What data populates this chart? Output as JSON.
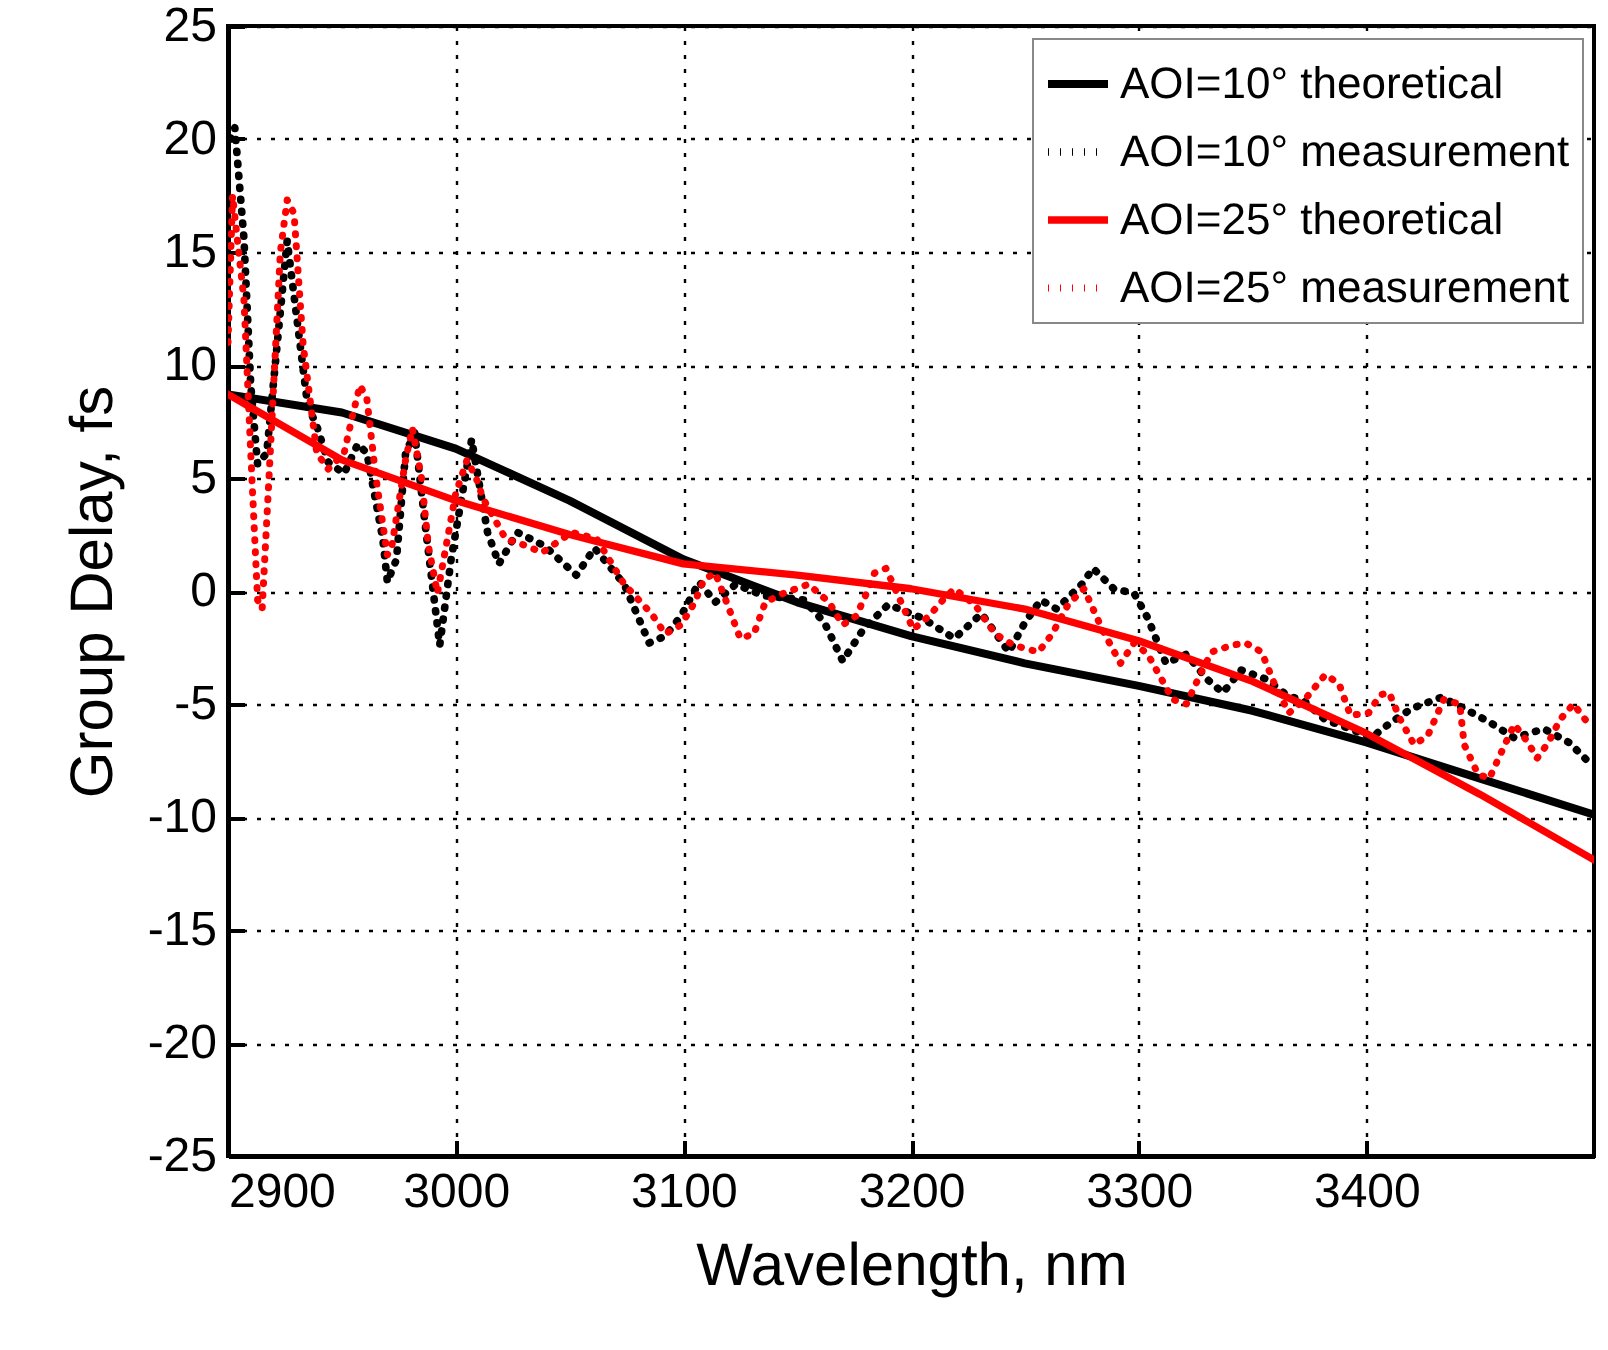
{
  "chart_data": {
    "type": "line",
    "xlabel": "Wavelength, nm",
    "ylabel": "Group Delay, fs",
    "xlim": [
      2900,
      3500
    ],
    "xticks": [
      2900,
      3000,
      3100,
      3200,
      3300,
      3400
    ],
    "ylim": [
      -25,
      25
    ],
    "yticks": [
      -25,
      -20,
      -15,
      -10,
      -5,
      0,
      5,
      10,
      15,
      20,
      25
    ],
    "grid": true,
    "legend": "top right",
    "series": [
      {
        "name": "AOI=10° theoretical",
        "color": "#000000",
        "line_style": "solid",
        "x": [
          2900,
          2950,
          3000,
          3050,
          3100,
          3150,
          3200,
          3250,
          3300,
          3350,
          3400,
          3450,
          3500
        ],
        "values": [
          8.7,
          7.9,
          6.3,
          4.0,
          1.4,
          -0.5,
          -2.0,
          -3.2,
          -4.2,
          -5.3,
          -6.7,
          -8.3,
          -9.9
        ]
      },
      {
        "name": "AOI=10° measurement",
        "color": "#000000",
        "line_style": "dotted",
        "x": [
          2901,
          2903,
          2907,
          2910,
          2913,
          2917,
          2926,
          2935,
          2939,
          2944,
          2951,
          2957,
          2961,
          2968,
          2970,
          2974,
          2978,
          2982,
          2987,
          2993,
          2998,
          3007,
          3014,
          3019,
          3027,
          3039,
          3053,
          3061,
          3074,
          3085,
          3092,
          3099,
          3107,
          3114,
          3123,
          3135,
          3153,
          3162,
          3170,
          3179,
          3190,
          3205,
          3219,
          3231,
          3243,
          3250,
          3257,
          3264,
          3275,
          3280,
          3289,
          3298,
          3304,
          3312,
          3321,
          3330,
          3337,
          3345,
          3356,
          3365,
          3373,
          3382,
          3393,
          3402,
          3411,
          3420,
          3433,
          3443,
          3454,
          3465,
          3478,
          3489,
          3499
        ],
        "values": [
          20.0,
          20.5,
          15.6,
          9.1,
          5.6,
          6.1,
          15.5,
          8.2,
          7.3,
          5.7,
          5.2,
          6.5,
          6.1,
          2.3,
          0.4,
          1.4,
          6.1,
          7.0,
          2.6,
          -2.4,
          1.4,
          6.7,
          2.6,
          1.2,
          2.6,
          2.0,
          0.7,
          1.9,
          0.3,
          -2.3,
          -2.0,
          -1.1,
          0.4,
          -0.5,
          0.3,
          -0.2,
          -0.4,
          -1.4,
          -3.1,
          -1.7,
          -0.6,
          -1.2,
          -2.1,
          -1.0,
          -2.7,
          -1.4,
          -0.4,
          -0.8,
          0.3,
          1.0,
          0.1,
          -0.1,
          -1.2,
          -3.2,
          -2.8,
          -3.9,
          -4.5,
          -3.5,
          -3.9,
          -4.6,
          -4.9,
          -5.7,
          -6.1,
          -6.5,
          -5.8,
          -5.2,
          -4.7,
          -5.2,
          -5.8,
          -6.5,
          -6.1,
          -6.7,
          -7.7
        ]
      },
      {
        "name": "AOI=25° theoretical",
        "color": "#ff0000",
        "line_style": "solid",
        "x": [
          2900,
          2950,
          3000,
          3050,
          3100,
          3150,
          3200,
          3250,
          3300,
          3350,
          3400,
          3450,
          3500
        ],
        "values": [
          8.7,
          5.8,
          4.0,
          2.5,
          1.2,
          0.7,
          0.1,
          -0.8,
          -2.2,
          -4.0,
          -6.3,
          -9.0,
          -11.9
        ]
      },
      {
        "name": "AOI=25° measurement",
        "color": "#ff0000",
        "line_style": "dotted",
        "x": [
          2900,
          2902,
          2907,
          2910,
          2913,
          2915,
          2918,
          2923,
          2926,
          2929,
          2933,
          2939,
          2944,
          2951,
          2955,
          2958,
          2961,
          2965,
          2970,
          2972,
          2978,
          2981,
          2985,
          2988,
          2992,
          2994,
          3000,
          3005,
          3009,
          3012,
          3022,
          3031,
          3038,
          3051,
          3062,
          3074,
          3086,
          3092,
          3099,
          3105,
          3109,
          3114,
          3119,
          3125,
          3131,
          3136,
          3144,
          3155,
          3164,
          3170,
          3176,
          3180,
          3184,
          3189,
          3193,
          3201,
          3208,
          3214,
          3219,
          3228,
          3237,
          3245,
          3256,
          3262,
          3269,
          3276,
          3284,
          3292,
          3298,
          3304,
          3315,
          3321,
          3327,
          3332,
          3341,
          3347,
          3354,
          3360,
          3366,
          3373,
          3382,
          3388,
          3393,
          3401,
          3406,
          3410,
          3415,
          3421,
          3427,
          3434,
          3441,
          3443,
          3449,
          3454,
          3459,
          3465,
          3471,
          3475,
          3480,
          3485,
          3491,
          3497
        ],
        "values": [
          11.0,
          17.5,
          12.9,
          6.1,
          -0.4,
          -0.8,
          5.0,
          15.0,
          17.3,
          16.7,
          10.9,
          6.1,
          5.4,
          6.1,
          7.9,
          9.1,
          8.5,
          5.0,
          1.6,
          2.0,
          5.8,
          7.2,
          5.0,
          2.0,
          -0.1,
          1.0,
          4.3,
          5.8,
          5.0,
          4.1,
          2.3,
          2.0,
          1.7,
          2.6,
          2.3,
          0.3,
          -1.0,
          -1.9,
          -1.5,
          -0.5,
          0.5,
          0.8,
          -0.5,
          -2.1,
          -1.9,
          -0.5,
          -0.1,
          0.3,
          -0.5,
          -1.5,
          -1.1,
          -0.2,
          0.8,
          1.0,
          0.1,
          -1.7,
          -1.1,
          -0.4,
          0.1,
          -0.6,
          -1.9,
          -2.4,
          -2.7,
          -1.9,
          -0.6,
          0.1,
          -1.7,
          -3.2,
          -2.3,
          -2.8,
          -4.8,
          -5.0,
          -3.7,
          -2.7,
          -2.4,
          -2.3,
          -2.7,
          -4.2,
          -5.4,
          -4.8,
          -3.7,
          -4.1,
          -5.5,
          -5.4,
          -4.6,
          -4.5,
          -5.7,
          -6.8,
          -6.4,
          -4.8,
          -5.0,
          -6.8,
          -8.1,
          -8.3,
          -7.2,
          -5.9,
          -6.7,
          -7.4,
          -6.7,
          -5.7,
          -5.0,
          -5.8
        ]
      }
    ]
  }
}
